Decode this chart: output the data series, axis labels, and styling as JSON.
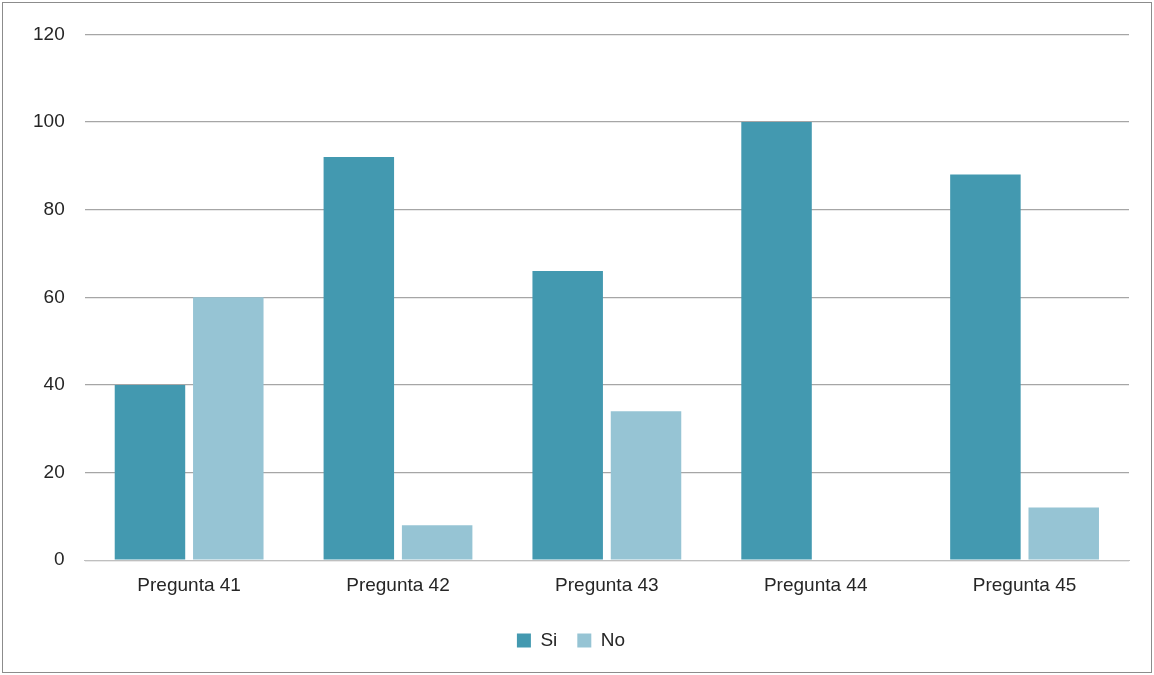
{
  "chart_data": {
    "type": "bar",
    "categories": [
      "Pregunta 41",
      "Pregunta 42",
      "Pregunta 43",
      "Pregunta 44",
      "Pregunta 45"
    ],
    "series": [
      {
        "name": "Si",
        "color": "#4399b0",
        "values": [
          40,
          92,
          66,
          100,
          88
        ]
      },
      {
        "name": "No",
        "color": "#96c4d4",
        "values": [
          60,
          8,
          34,
          0,
          12
        ]
      }
    ],
    "ylim": [
      0,
      120
    ],
    "yticks": [
      0,
      20,
      40,
      60,
      80,
      100,
      120
    ],
    "grid": "y",
    "legend": "bottom"
  }
}
